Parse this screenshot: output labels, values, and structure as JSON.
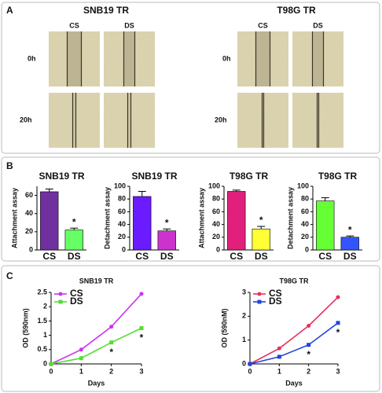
{
  "panel_labels": [
    "A",
    "B",
    "C"
  ],
  "panel_a": {
    "groups": [
      {
        "title": "SNB19 TR",
        "columns": [
          "CS",
          "DS"
        ],
        "rows": [
          "0h",
          "20h"
        ]
      },
      {
        "title": "T98G TR",
        "columns": [
          "CS",
          "DS"
        ],
        "rows": [
          "0h",
          "20h"
        ]
      }
    ]
  },
  "chart_data": [
    {
      "type": "bar",
      "title": "SNB19 TR",
      "ylabel": "Attachment assay",
      "categories": [
        "CS",
        "DS"
      ],
      "values": [
        64,
        22
      ],
      "errors": [
        3,
        2
      ],
      "colors": [
        "#7030a0",
        "#66ff66"
      ],
      "ylim": [
        0,
        70
      ],
      "yticks": [
        0,
        20,
        40,
        60
      ],
      "annotation": {
        "category": "DS",
        "text": "*"
      }
    },
    {
      "type": "bar",
      "title": "SNB19 TR",
      "ylabel": "Detachment assay",
      "categories": [
        "CS",
        "DS"
      ],
      "values": [
        84,
        30
      ],
      "errors": [
        8,
        3
      ],
      "colors": [
        "#6a1bff",
        "#cc33cc"
      ],
      "ylim": [
        0,
        100
      ],
      "yticks": [
        0,
        20,
        40,
        60,
        80,
        100
      ],
      "annotation": {
        "category": "DS",
        "text": "*"
      }
    },
    {
      "type": "bar",
      "title": "T98G TR",
      "ylabel": "Attachment assay",
      "categories": [
        "CS",
        "DS"
      ],
      "values": [
        92,
        33
      ],
      "errors": [
        2,
        4
      ],
      "colors": [
        "#e0207a",
        "#ffff33"
      ],
      "ylim": [
        0,
        100
      ],
      "yticks": [
        0,
        20,
        40,
        60,
        80,
        100
      ],
      "annotation": {
        "category": "DS",
        "text": "*"
      }
    },
    {
      "type": "bar",
      "title": "T98G TR",
      "ylabel": "Detachment assay",
      "categories": [
        "CS",
        "DS"
      ],
      "values": [
        77,
        20
      ],
      "errors": [
        5,
        2
      ],
      "colors": [
        "#66ff33",
        "#3355ff"
      ],
      "ylim": [
        0,
        100
      ],
      "yticks": [
        0,
        20,
        40,
        60,
        80,
        100
      ],
      "annotation": {
        "category": "DS",
        "text": "*"
      }
    },
    {
      "type": "line",
      "title": "SNB19 TR",
      "xlabel": "Days",
      "ylabel": "OD (590nm)",
      "x": [
        0,
        1,
        2,
        3
      ],
      "xlim": [
        0,
        3
      ],
      "xticks": [
        0,
        1,
        2,
        3
      ],
      "ylim": [
        0,
        2.5
      ],
      "yticks": [
        0,
        0.5,
        1,
        1.5,
        2,
        2.5
      ],
      "series": [
        {
          "name": "CS",
          "color": "#cc33ee",
          "values": [
            0,
            0.5,
            1.3,
            2.45
          ]
        },
        {
          "name": "DS",
          "color": "#55dd33",
          "values": [
            0,
            0.2,
            0.75,
            1.25
          ]
        }
      ],
      "annotations": [
        {
          "x": 2,
          "text": "*"
        },
        {
          "x": 3,
          "text": "*"
        }
      ]
    },
    {
      "type": "line",
      "title": "T98G TR",
      "xlabel": "Days",
      "ylabel": "OD (590nM)",
      "x": [
        0,
        1,
        2,
        3
      ],
      "xlim": [
        0,
        3
      ],
      "xticks": [
        0,
        1,
        2,
        3
      ],
      "ylim": [
        0,
        3
      ],
      "yticks": [
        0,
        1,
        2,
        3
      ],
      "series": [
        {
          "name": "CS",
          "color": "#e8305a",
          "values": [
            0,
            0.65,
            1.6,
            2.8
          ]
        },
        {
          "name": "DS",
          "color": "#2244dd",
          "values": [
            0,
            0.3,
            0.8,
            1.72
          ]
        }
      ],
      "annotations": [
        {
          "x": 2,
          "text": "*"
        },
        {
          "x": 3,
          "text": "*"
        }
      ]
    }
  ]
}
